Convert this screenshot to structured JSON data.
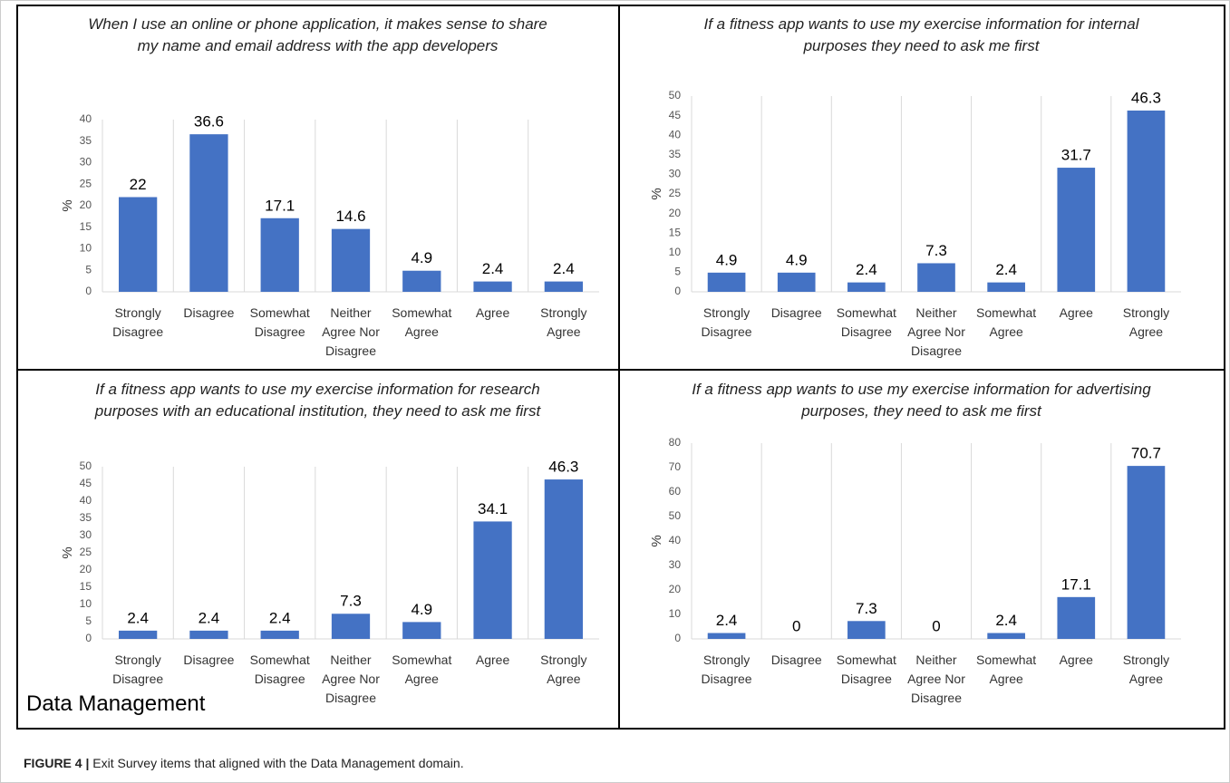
{
  "chart_data": [
    {
      "type": "bar",
      "title": "When I use an online or phone application, it makes sense to share my name and email address with the app developers",
      "ylabel": "%",
      "categories": [
        "Strongly Disagree",
        "Disagree",
        "Somewhat Disagree",
        "Neither Agree Nor Disagree",
        "Somewhat Agree",
        "Agree",
        "Strongly Agree"
      ],
      "values": [
        22,
        36.6,
        17.1,
        14.6,
        4.9,
        2.4,
        2.4
      ],
      "color": "#4472c4",
      "ylim": [
        0,
        40
      ],
      "yticks": [
        0,
        5,
        10,
        15,
        20,
        25,
        30,
        35,
        40
      ],
      "grid": "x"
    },
    {
      "type": "bar",
      "title": "If a fitness app wants to use my exercise information for internal purposes they need to ask me first",
      "ylabel": "%",
      "categories": [
        "Strongly Disagree",
        "Disagree",
        "Somewhat Disagree",
        "Neither Agree Nor Disagree",
        "Somewhat Agree",
        "Agree",
        "Strongly Agree"
      ],
      "values": [
        4.9,
        4.9,
        2.4,
        7.3,
        2.4,
        31.7,
        46.3
      ],
      "color": "#4472c4",
      "ylim": [
        0,
        50
      ],
      "yticks": [
        0,
        5,
        10,
        15,
        20,
        25,
        30,
        35,
        40,
        45,
        50
      ],
      "grid": "x"
    },
    {
      "type": "bar",
      "title": "If a fitness app wants to use my exercise information for research purposes with an educational institution, they need to ask me first",
      "ylabel": "%",
      "categories": [
        "Strongly Disagree",
        "Disagree",
        "Somewhat Disagree",
        "Neither Agree Nor Disagree",
        "Somewhat Agree",
        "Agree",
        "Strongly Agree"
      ],
      "values": [
        2.4,
        2.4,
        2.4,
        7.3,
        4.9,
        34.1,
        46.3
      ],
      "color": "#4472c4",
      "ylim": [
        0,
        50
      ],
      "yticks": [
        0,
        5,
        10,
        15,
        20,
        25,
        30,
        35,
        40,
        45,
        50
      ],
      "grid": "x"
    },
    {
      "type": "bar",
      "title": "If a fitness app wants to use my exercise information for advertising purposes, they need to ask me first",
      "ylabel": "%",
      "categories": [
        "Strongly Disagree",
        "Disagree",
        "Somewhat Disagree",
        "Neither Agree Nor Disagree",
        "Somewhat Agree",
        "Agree",
        "Strongly Agree"
      ],
      "values": [
        2.4,
        0,
        7.3,
        0,
        2.4,
        17.1,
        70.7
      ],
      "color": "#4472c4",
      "ylim": [
        0,
        80
      ],
      "yticks": [
        0,
        10,
        20,
        30,
        40,
        50,
        60,
        70,
        80
      ],
      "grid": "x"
    }
  ],
  "panel_label": "Data Management",
  "caption_label": "FIGURE 4 |",
  "caption": "Exit Survey items that aligned with the Data Management domain."
}
